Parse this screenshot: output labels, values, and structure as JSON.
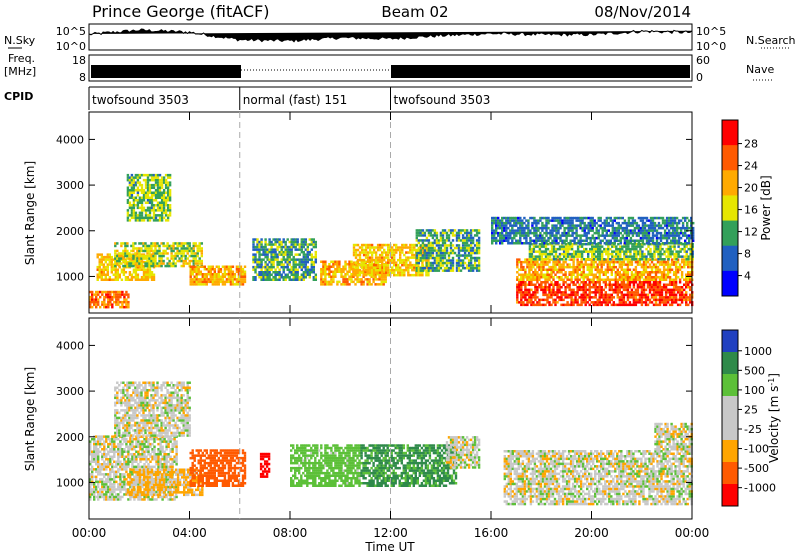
{
  "header": {
    "title": "Prince George (fitACF)",
    "beam": "Beam 02",
    "date": "08/Nov/2014"
  },
  "strips": {
    "nsky_label": "N.Sky",
    "nsky_ticks": [
      "10^5",
      "10^0"
    ],
    "nsearch_label": "N.Search",
    "nsearch_ticks": [
      "10^5",
      "10^0"
    ],
    "freq_label_1": "Freq.",
    "freq_label_2": "[MHz]",
    "freq_ticks": [
      "18",
      "8"
    ],
    "nave_label": "Nave",
    "nave_ticks": [
      "60",
      "0"
    ],
    "cpid_label": "CPID",
    "cpid_segments": [
      {
        "label": "twofsound 3503",
        "start_h": 0,
        "end_h": 6
      },
      {
        "label": "normal (fast) 151",
        "start_h": 6,
        "end_h": 12
      },
      {
        "label": "twofsound 3503",
        "start_h": 12,
        "end_h": 24
      }
    ]
  },
  "axes": {
    "xlabel": "Time UT",
    "x_tick_labels": [
      "00:00",
      "04:00",
      "08:00",
      "12:00",
      "16:00",
      "20:00",
      "00:00"
    ],
    "x_tick_hours": [
      0,
      4,
      8,
      12,
      16,
      20,
      24
    ],
    "ylabel": "Slant Range [km]",
    "y_ticks": [
      1000,
      2000,
      3000,
      4000
    ]
  },
  "colorbars": {
    "power": {
      "label": "Power [dB]",
      "ticks": [
        "28",
        "24",
        "20",
        "16",
        "12",
        "8",
        "4"
      ],
      "colors": [
        "#ff0000",
        "#ff5a00",
        "#ffaa00",
        "#e6e600",
        "#33a05a",
        "#2060c0",
        "#0000ff"
      ]
    },
    "velocity": {
      "label": "Velocity [m s",
      "label_sup": "-1",
      "label_end": "]",
      "ticks": [
        "1000",
        "500",
        "100",
        "25",
        "-25",
        "-100",
        "-500",
        "-1000"
      ],
      "colors": [
        "#2040c0",
        "#2f8a4a",
        "#5cc038",
        "#c8c8c8",
        "#c8c8c8",
        "#ffa500",
        "#ff5a00",
        "#ff0000"
      ]
    }
  },
  "chart_data": [
    {
      "type": "heatmap",
      "title": "Power",
      "ylabel": "Slant Range [km]",
      "xlabel": "",
      "xlim": [
        0,
        24
      ],
      "ylim": [
        200,
        4600
      ],
      "value_range": [
        0,
        30
      ],
      "blobs": [
        {
          "t0": 0.0,
          "t1": 1.6,
          "r0": 300,
          "r1": 650,
          "value": 24
        },
        {
          "t0": 0.3,
          "t1": 2.6,
          "r0": 900,
          "r1": 1500,
          "value": 18
        },
        {
          "t0": 1.0,
          "t1": 4.5,
          "r0": 1200,
          "r1": 1700,
          "value": 14
        },
        {
          "t0": 1.5,
          "t1": 3.2,
          "r0": 2200,
          "r1": 3200,
          "value": 12
        },
        {
          "t0": 4.0,
          "t1": 6.2,
          "r0": 800,
          "r1": 1200,
          "value": 20
        },
        {
          "t0": 6.5,
          "t1": 9.0,
          "r0": 900,
          "r1": 1800,
          "value": 10
        },
        {
          "t0": 9.2,
          "t1": 11.8,
          "r0": 800,
          "r1": 1300,
          "value": 20
        },
        {
          "t0": 10.5,
          "t1": 13.5,
          "r0": 1000,
          "r1": 1700,
          "value": 18
        },
        {
          "t0": 13.0,
          "t1": 15.5,
          "r0": 1100,
          "r1": 2000,
          "value": 10
        },
        {
          "t0": 17.0,
          "t1": 24.0,
          "r0": 350,
          "r1": 900,
          "value": 27
        },
        {
          "t0": 17.0,
          "t1": 24.0,
          "r0": 900,
          "r1": 1350,
          "value": 20
        },
        {
          "t0": 17.5,
          "t1": 24.0,
          "r0": 1350,
          "r1": 1700,
          "value": 12
        },
        {
          "t0": 16.0,
          "t1": 24.0,
          "r0": 1700,
          "r1": 2300,
          "value": 7
        }
      ]
    },
    {
      "type": "heatmap",
      "title": "Velocity",
      "ylabel": "Slant Range [km]",
      "xlabel": "Time UT",
      "xlim": [
        0,
        24
      ],
      "ylim": [
        200,
        4600
      ],
      "value_range": [
        -1000,
        1000
      ],
      "blobs": [
        {
          "t0": 0.0,
          "t1": 3.5,
          "r0": 600,
          "r1": 2000,
          "value": 0
        },
        {
          "t0": 1.0,
          "t1": 4.0,
          "r0": 2000,
          "r1": 3200,
          "value": 0
        },
        {
          "t0": 1.5,
          "t1": 4.5,
          "r0": 700,
          "r1": 1300,
          "value": -100
        },
        {
          "t0": 4.0,
          "t1": 6.2,
          "r0": 900,
          "r1": 1700,
          "value": -500
        },
        {
          "t0": 6.8,
          "t1": 7.2,
          "r0": 1100,
          "r1": 1600,
          "value": -1000
        },
        {
          "t0": 8.0,
          "t1": 10.8,
          "r0": 900,
          "r1": 1800,
          "value": 150
        },
        {
          "t0": 10.8,
          "t1": 14.6,
          "r0": 900,
          "r1": 1800,
          "value": 300
        },
        {
          "t0": 14.2,
          "t1": 15.5,
          "r0": 1300,
          "r1": 2000,
          "value": 0
        },
        {
          "t0": 16.5,
          "t1": 24.0,
          "r0": 500,
          "r1": 1700,
          "value": 0
        },
        {
          "t0": 22.5,
          "t1": 24.0,
          "r0": 1700,
          "r1": 2300,
          "value": 0
        }
      ]
    },
    {
      "type": "line",
      "title": "N.Sky",
      "x": [
        0,
        2,
        4,
        6,
        8,
        10,
        12,
        14,
        16,
        18,
        20,
        22,
        24
      ],
      "values": [
        3.0,
        3.8,
        3.4,
        2.0,
        1.8,
        2.4,
        2.2,
        2.8,
        3.2,
        3.0,
        3.0,
        3.6,
        3.4
      ]
    }
  ]
}
